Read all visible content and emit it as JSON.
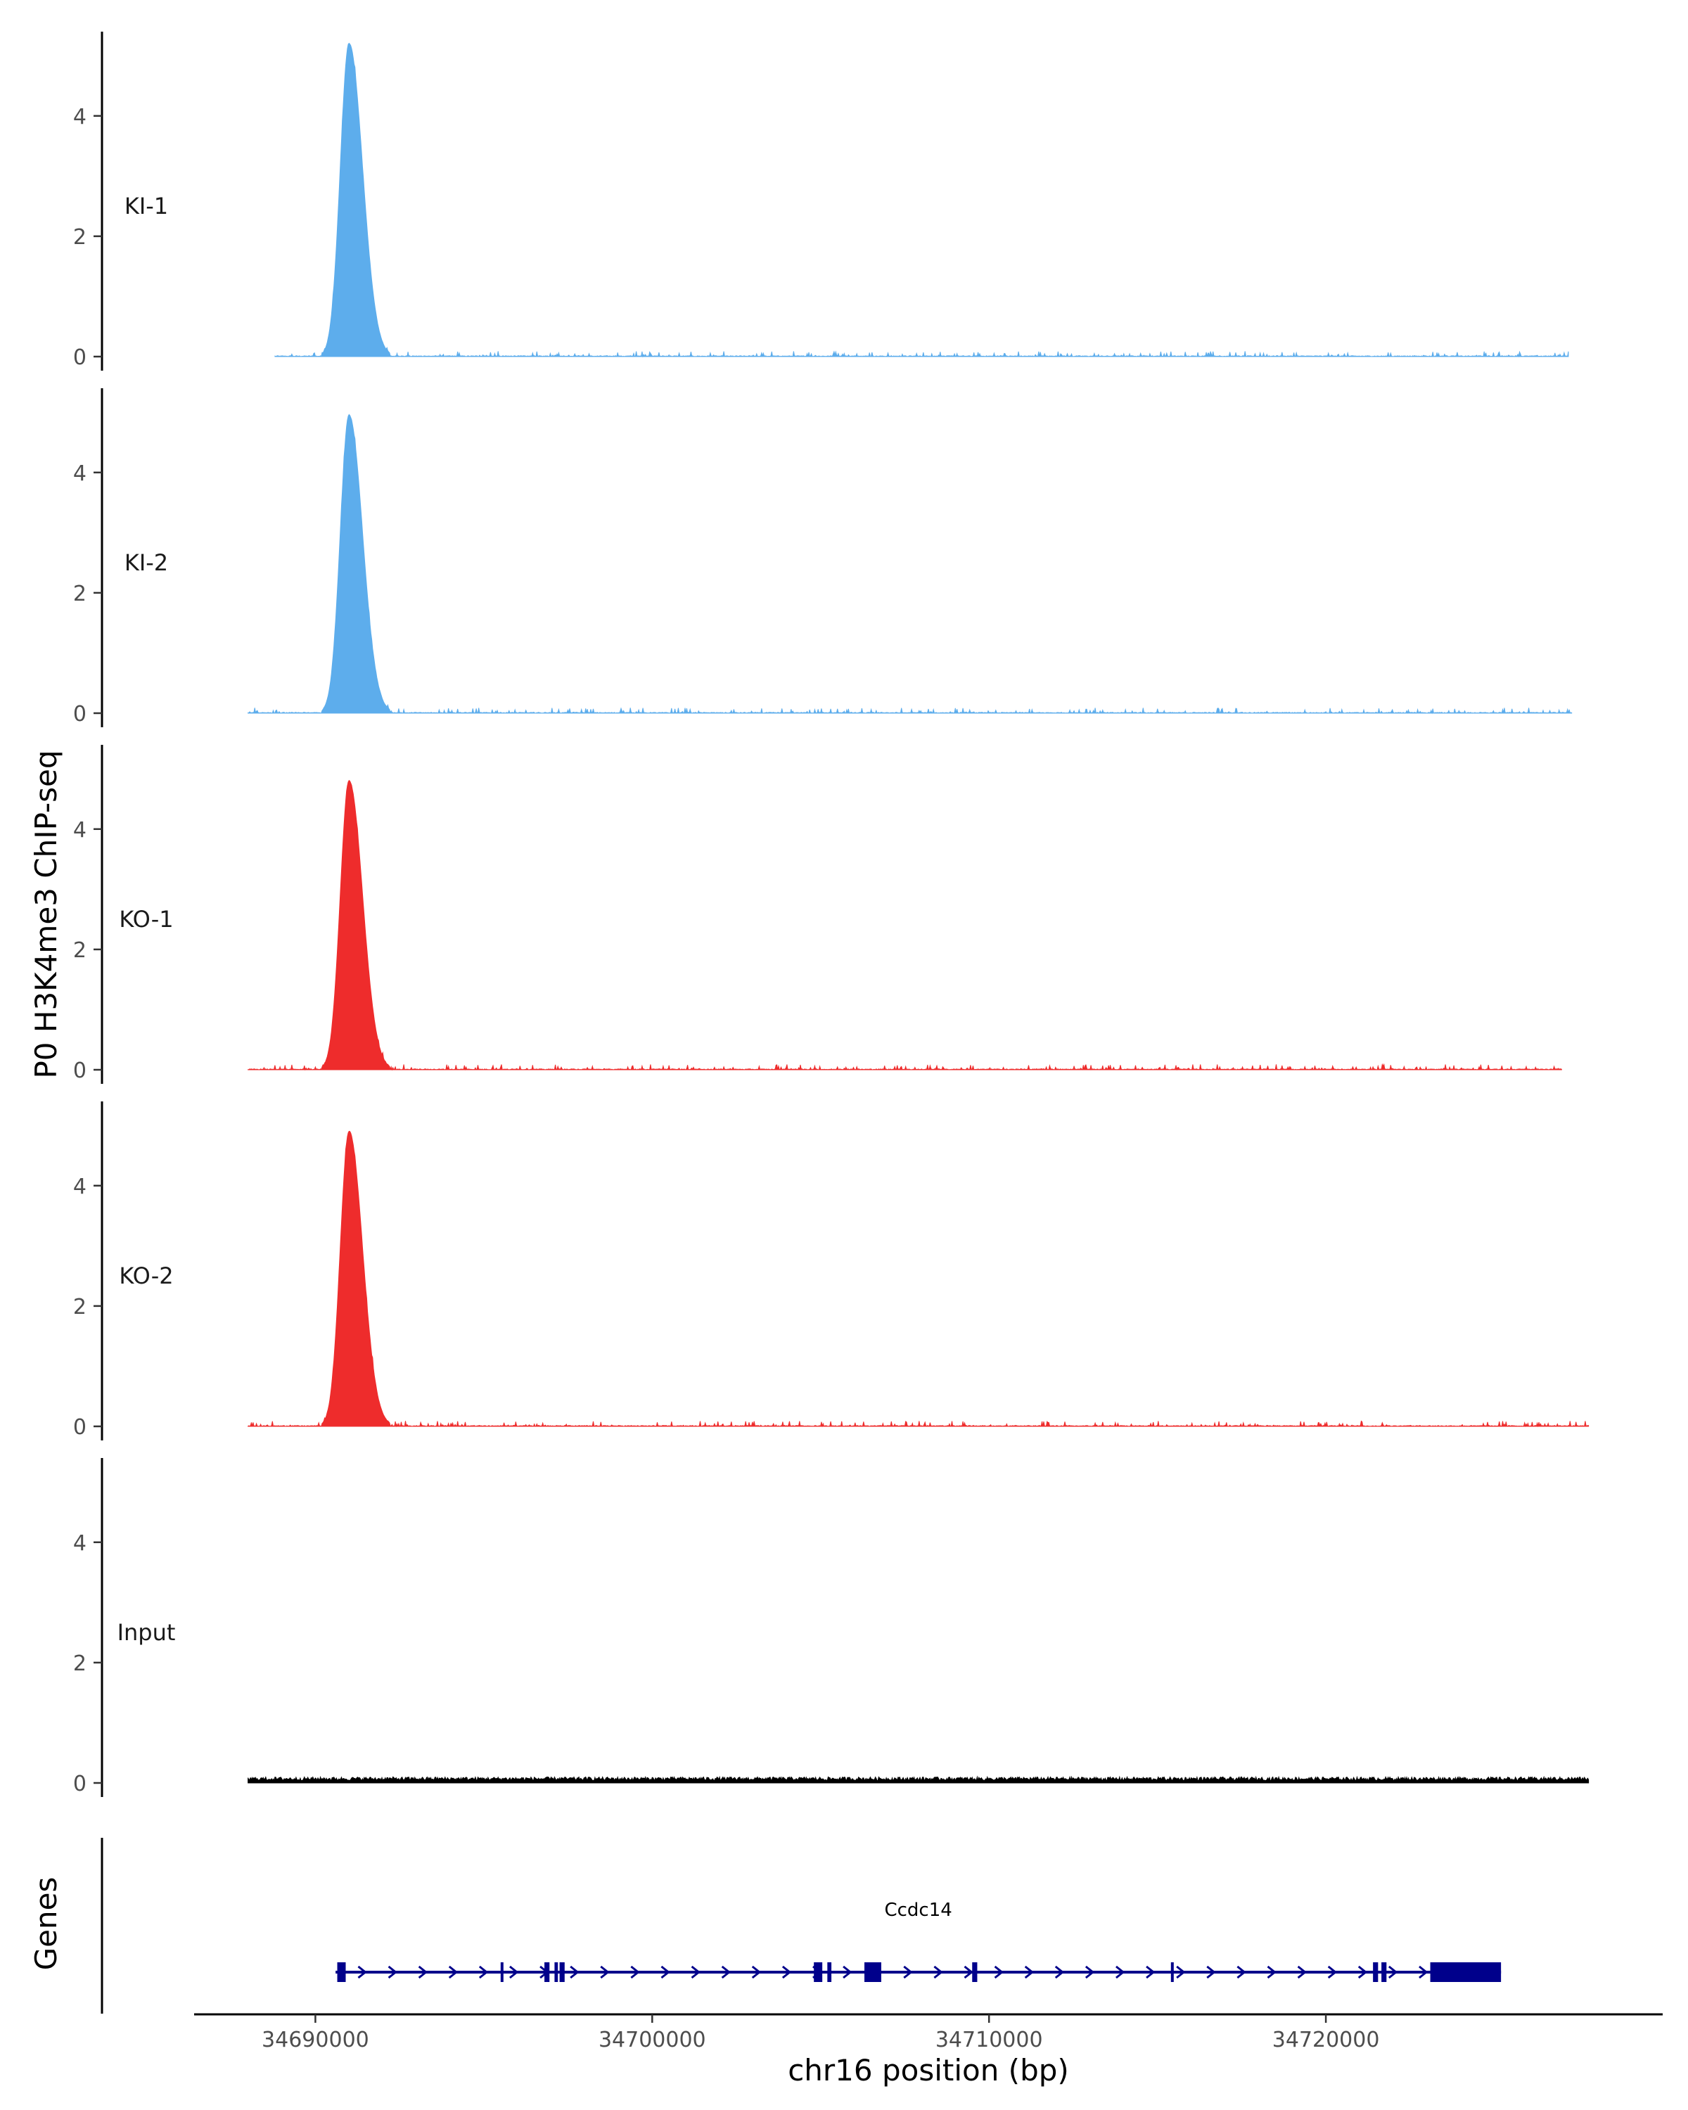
{
  "chart_data": {
    "type": "area",
    "ylabel": "P0 H3K4me3 ChIP-seq",
    "xlabel": "chr16 position (bp)",
    "genes_label": "Genes",
    "xlim": [
      34686400,
      34730000
    ],
    "ylim": [
      0,
      5.4
    ],
    "x_ticks": [
      34690000,
      34700000,
      34710000,
      34720000
    ],
    "x_tick_labels": [
      "34690000",
      "34700000",
      "34710000",
      "34720000"
    ],
    "y_ticks": [
      0,
      2,
      4
    ],
    "y_tick_labels": [
      "0",
      "2",
      "4"
    ],
    "peak": {
      "center": 34691000,
      "rise_start": 34690200,
      "fall_end": 34692200
    },
    "tracks": [
      {
        "name": "KI-1",
        "color": "#5DADEC",
        "peak_height": 5.2,
        "signal_start": 34688800,
        "signal_end": 34727200
      },
      {
        "name": "KI-2",
        "color": "#5DADEC",
        "peak_height": 4.95,
        "signal_start": 34688000,
        "signal_end": 34727300
      },
      {
        "name": "KO-1",
        "color": "#EE2C2C",
        "peak_height": 4.8,
        "signal_start": 34688000,
        "signal_end": 34727000
      },
      {
        "name": "KO-2",
        "color": "#EE2C2C",
        "peak_height": 4.9,
        "signal_start": 34688000,
        "signal_end": 34727800
      },
      {
        "name": "Input",
        "color": "#000000",
        "peak_height": 0.1,
        "signal_start": 34688000,
        "signal_end": 34727800
      }
    ],
    "gene": {
      "name": "Ccdc14",
      "color": "#00008B",
      "strand": "+",
      "start": 34690600,
      "end": 34725200,
      "exons": [
        [
          34690650,
          34690900
        ],
        [
          34695500,
          34695560
        ],
        [
          34696800,
          34696950
        ],
        [
          34697100,
          34697200
        ],
        [
          34697250,
          34697400
        ],
        [
          34704800,
          34705050
        ],
        [
          34705200,
          34705320
        ],
        [
          34706300,
          34706800
        ],
        [
          34709500,
          34709650
        ],
        [
          34715400,
          34715460
        ],
        [
          34721400,
          34721550
        ],
        [
          34721650,
          34721800
        ],
        [
          34723100,
          34725200
        ]
      ]
    }
  }
}
